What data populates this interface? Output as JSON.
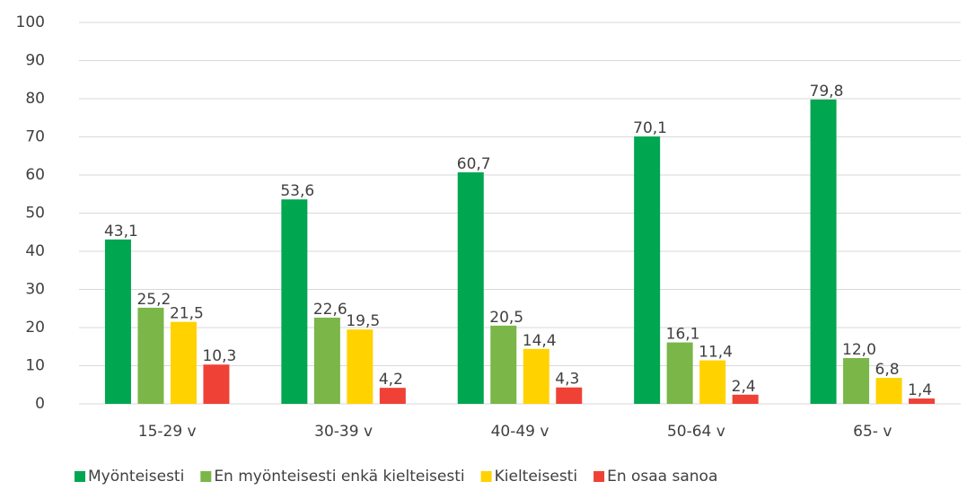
{
  "chart_data": {
    "type": "bar",
    "categories": [
      "15-29 v",
      "30-39 v",
      "40-49 v",
      "50-64 v",
      "65- v"
    ],
    "series": [
      {
        "name": "Myönteisesti",
        "color": "#00a650",
        "values": [
          43.1,
          53.6,
          60.7,
          70.1,
          79.8
        ],
        "value_labels": [
          "43,1",
          "53,6",
          "60,7",
          "70,1",
          "79,8"
        ]
      },
      {
        "name": "En myönteisesti enkä kielteisesti",
        "color": "#7ab648",
        "values": [
          25.2,
          22.6,
          20.5,
          16.1,
          12.0
        ],
        "value_labels": [
          "25,2",
          "22,6",
          "20,5",
          "16,1",
          "12,0"
        ]
      },
      {
        "name": "Kielteisesti",
        "color": "#ffd200",
        "values": [
          21.5,
          19.5,
          14.4,
          11.4,
          6.8
        ],
        "value_labels": [
          "21,5",
          "19,5",
          "14,4",
          "11,4",
          "6,8"
        ]
      },
      {
        "name": "En osaa sanoa",
        "color": "#ef4136",
        "values": [
          10.3,
          4.2,
          4.3,
          2.4,
          1.4
        ],
        "value_labels": [
          "10,3",
          "4,2",
          "4,3",
          "2,4",
          "1,4"
        ]
      }
    ],
    "ylim": [
      0,
      100
    ],
    "yticks": [
      0,
      10,
      20,
      30,
      40,
      50,
      60,
      70,
      80,
      90,
      100
    ],
    "grid": true,
    "legend": "bottom"
  }
}
